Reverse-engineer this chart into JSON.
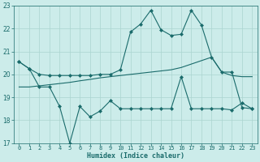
{
  "xlabel": "Humidex (Indice chaleur)",
  "background_color": "#ccecea",
  "grid_color": "#aad4d0",
  "line_color": "#1a6b6b",
  "xlim": [
    -0.5,
    23.5
  ],
  "ylim": [
    17,
    23
  ],
  "yticks": [
    17,
    18,
    19,
    20,
    21,
    22,
    23
  ],
  "xticks": [
    0,
    1,
    2,
    3,
    4,
    5,
    6,
    7,
    8,
    9,
    10,
    11,
    12,
    13,
    14,
    15,
    16,
    17,
    18,
    19,
    20,
    21,
    22,
    23
  ],
  "line1_x": [
    0,
    1,
    2,
    3,
    4,
    5,
    6,
    7,
    8,
    9,
    10,
    11,
    12,
    13,
    14,
    15,
    16,
    17,
    18,
    19,
    20,
    21,
    22,
    23
  ],
  "line1_y": [
    20.55,
    20.25,
    20.0,
    19.95,
    19.95,
    19.95,
    19.95,
    19.95,
    20.0,
    20.0,
    20.2,
    21.85,
    22.2,
    22.8,
    21.95,
    21.7,
    21.75,
    22.8,
    22.15,
    20.75,
    20.1,
    20.1,
    18.55,
    18.5
  ],
  "line2_x": [
    0,
    1,
    2,
    3,
    4,
    5,
    6,
    7,
    8,
    9,
    10,
    11,
    12,
    13,
    14,
    15,
    16,
    17,
    18,
    19,
    20,
    21,
    22,
    23
  ],
  "line2_y": [
    19.45,
    19.45,
    19.5,
    19.55,
    19.6,
    19.65,
    19.72,
    19.78,
    19.85,
    19.9,
    19.95,
    20.0,
    20.05,
    20.1,
    20.15,
    20.2,
    20.3,
    20.45,
    20.6,
    20.75,
    20.1,
    19.95,
    19.9,
    19.9
  ],
  "line3_x": [
    0,
    1,
    2,
    3,
    4,
    5,
    6,
    7,
    8,
    9,
    10,
    11,
    12,
    13,
    14,
    15,
    16,
    17,
    18,
    19,
    20,
    21,
    22,
    23
  ],
  "line3_y": [
    20.55,
    20.25,
    19.45,
    19.45,
    18.6,
    17.0,
    18.6,
    18.15,
    18.4,
    18.85,
    18.5,
    18.5,
    18.5,
    18.5,
    18.5,
    18.5,
    19.9,
    18.5,
    18.5,
    18.5,
    18.5,
    18.45,
    18.75,
    18.5
  ]
}
